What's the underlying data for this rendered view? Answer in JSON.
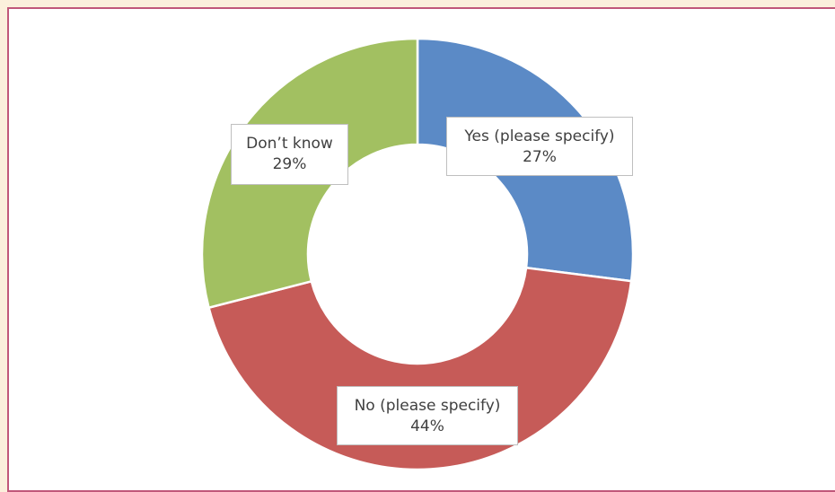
{
  "chart_data": {
    "type": "pie",
    "variant": "donut",
    "title": "",
    "categories": [
      "Yes (please specify)",
      "No (please specify)",
      "Don’t know"
    ],
    "values": [
      27,
      44,
      29
    ],
    "value_labels": [
      "27%",
      "44%",
      "29%"
    ],
    "colors": [
      "#5b8ac6",
      "#c65b58",
      "#a2c061"
    ],
    "legend": "none"
  }
}
